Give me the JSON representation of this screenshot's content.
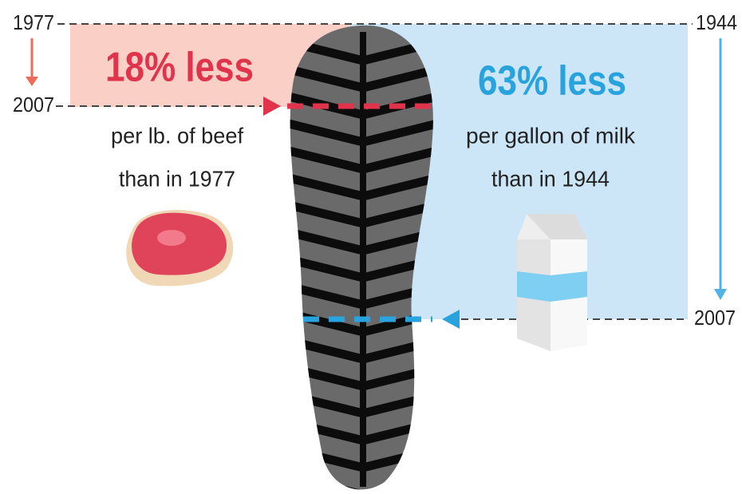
{
  "left": {
    "start_year": "1977",
    "end_year": "2007",
    "headline": "18% less",
    "caption_line1": "per lb. of beef",
    "caption_line2": "than in 1977"
  },
  "right": {
    "start_year": "1944",
    "end_year": "2007",
    "headline": "63% less",
    "caption_line1": "per gallon of milk",
    "caption_line2": "than in 1944"
  }
}
